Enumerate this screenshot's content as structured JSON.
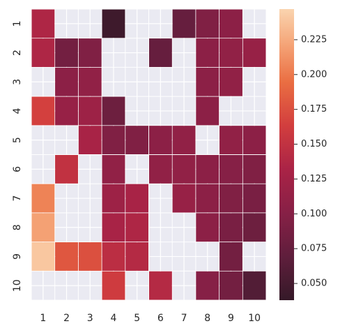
{
  "chart_data": {
    "type": "heatmap",
    "title": "",
    "xlabel": "",
    "ylabel": "",
    "x_labels": [
      "1",
      "2",
      "3",
      "4",
      "5",
      "6",
      "7",
      "8",
      "9",
      "10"
    ],
    "y_labels": [
      "1",
      "2",
      "3",
      "4",
      "5",
      "6",
      "7",
      "8",
      "9",
      "10"
    ],
    "values": [
      [
        0.135,
        null,
        null,
        0.045,
        null,
        null,
        0.075,
        0.095,
        0.105,
        null
      ],
      [
        0.135,
        0.085,
        0.095,
        null,
        null,
        0.075,
        null,
        0.105,
        0.11,
        0.115
      ],
      [
        null,
        0.105,
        0.11,
        null,
        null,
        null,
        null,
        0.105,
        0.11,
        null
      ],
      [
        0.165,
        0.115,
        0.12,
        0.08,
        null,
        null,
        null,
        0.105,
        null,
        null
      ],
      [
        null,
        null,
        0.13,
        0.095,
        0.095,
        0.105,
        0.11,
        null,
        0.11,
        0.105
      ],
      [
        null,
        0.15,
        null,
        0.11,
        null,
        0.11,
        0.11,
        0.105,
        0.1,
        0.095
      ],
      [
        0.205,
        null,
        null,
        0.12,
        0.13,
        null,
        0.115,
        0.105,
        0.095,
        0.09
      ],
      [
        0.22,
        null,
        null,
        0.13,
        0.135,
        null,
        null,
        0.105,
        0.09,
        0.08
      ],
      [
        0.24,
        0.18,
        0.175,
        0.145,
        0.14,
        null,
        null,
        null,
        0.085,
        null
      ],
      [
        null,
        null,
        null,
        0.16,
        null,
        0.14,
        null,
        0.1,
        0.085,
        0.06
      ]
    ],
    "colorbar": {
      "range": [
        0.038,
        0.247
      ],
      "ticks": [
        "0.050",
        "0.075",
        "0.100",
        "0.125",
        "0.150",
        "0.175",
        "0.200",
        "0.225"
      ],
      "palette": "rocket"
    },
    "missing_color": "#eaeaf2",
    "grid_color": "#ffffff"
  }
}
